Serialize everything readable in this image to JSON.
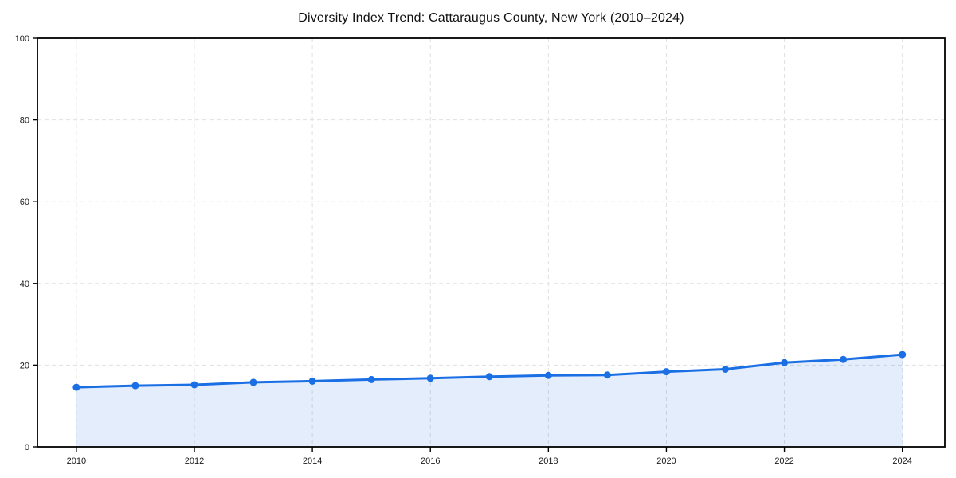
{
  "chart_data": {
    "type": "area",
    "title": "Diversity Index Trend: Cattaraugus County, New York (2010–2024)",
    "xlabel": "",
    "ylabel": "",
    "x": [
      2010,
      2011,
      2012,
      2013,
      2014,
      2015,
      2016,
      2017,
      2018,
      2019,
      2020,
      2021,
      2022,
      2023,
      2024
    ],
    "series": [
      {
        "name": "Diversity Index",
        "values": [
          14.6,
          15.0,
          15.2,
          15.8,
          16.1,
          16.5,
          16.8,
          17.2,
          17.5,
          17.6,
          18.4,
          19.0,
          20.6,
          21.4,
          22.6
        ]
      }
    ],
    "xlim": [
      2009.34,
      2024.72
    ],
    "ylim": [
      0,
      100
    ],
    "xticks": [
      2010,
      2012,
      2014,
      2016,
      2018,
      2020,
      2022,
      2024
    ],
    "yticks": [
      0,
      20,
      40,
      60,
      80,
      100
    ],
    "grid": true,
    "legend": "none",
    "line_color": "#1a6fe4",
    "marker_color": "#1a6fe4",
    "fill_color": "#1a6fe4",
    "fill_opacity": 0.12,
    "line_width": 3,
    "marker_radius": 4.5
  }
}
